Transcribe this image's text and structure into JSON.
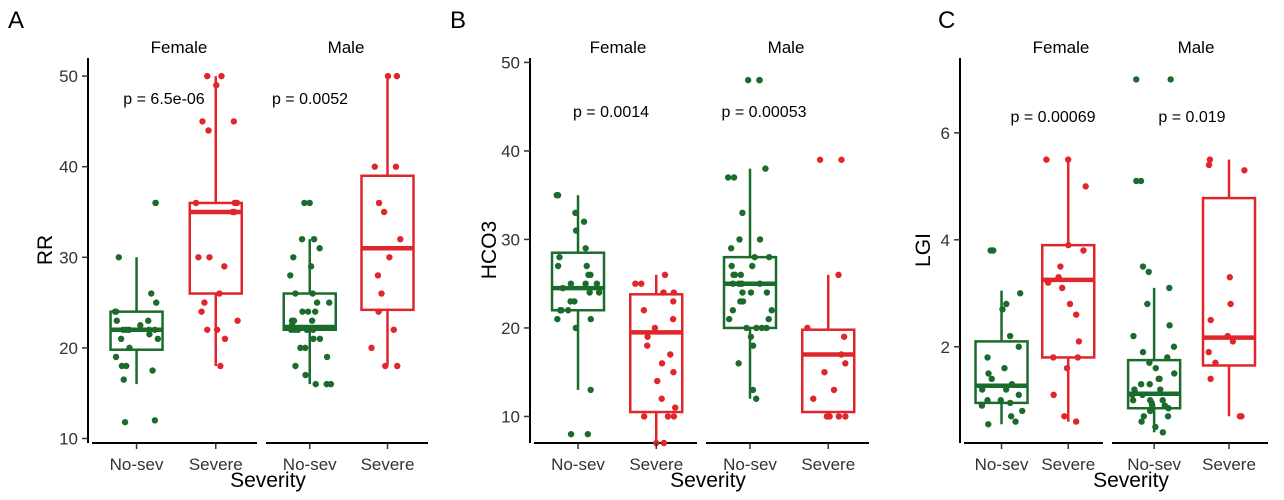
{
  "colors": {
    "no_sev": "#1a6b2c",
    "severe": "#e0252b"
  },
  "chart_data": [
    {
      "type": "box",
      "panel_letter": "A",
      "ylabel": "RR",
      "xlabel": "Severity",
      "ylim": [
        9.5,
        52
      ],
      "yticks": [
        10,
        20,
        30,
        40,
        50
      ],
      "categories": [
        "No-sev",
        "Severe"
      ],
      "facets": [
        {
          "name": "Female",
          "pvalue": "p = 6.5e-06",
          "groups": [
            {
              "category": "No-sev",
              "q1": 19.8,
              "median": 22,
              "q3": 24,
              "whisker_low": 16,
              "whisker_high": 30,
              "points": [
                30,
                26,
                25,
                24,
                24,
                23,
                23,
                22.5,
                22,
                22,
                22,
                22,
                22,
                21.5,
                21,
                21,
                20,
                19,
                18,
                18,
                17.5,
                16.5,
                12,
                11.8,
                36,
                36
              ]
            },
            {
              "category": "Severe",
              "q1": 26,
              "median": 35,
              "q3": 36,
              "whisker_low": 18,
              "whisker_high": 50,
              "points": [
                50,
                50,
                49,
                45,
                45,
                44,
                36,
                36,
                36,
                36,
                35,
                35,
                30,
                30,
                29,
                26,
                25,
                24,
                23,
                22,
                22,
                21,
                18
              ]
            }
          ]
        },
        {
          "name": "Male",
          "pvalue": "p = 0.0052",
          "groups": [
            {
              "category": "No-sev",
              "q1": 22,
              "median": 22.3,
              "q3": 26,
              "whisker_low": 16,
              "whisker_high": 32,
              "points": [
                36,
                36,
                32,
                32,
                31,
                30,
                29,
                28,
                26,
                26,
                25,
                25,
                24,
                24,
                24,
                23,
                23,
                23,
                22.5,
                22,
                22,
                22,
                22,
                22,
                22,
                21,
                21,
                20,
                20,
                19,
                18,
                17,
                16,
                16,
                16
              ]
            },
            {
              "category": "Severe",
              "q1": 24.2,
              "median": 31,
              "q3": 39,
              "whisker_low": 18,
              "whisker_high": 50,
              "points": [
                50,
                50,
                40,
                40,
                36,
                35,
                32,
                30,
                28,
                26,
                24,
                22,
                20,
                18,
                18
              ]
            }
          ]
        }
      ]
    },
    {
      "type": "box",
      "panel_letter": "B",
      "ylabel": "HCO3",
      "xlabel": "Severity",
      "ylim": [
        7,
        50.5
      ],
      "yticks": [
        10,
        20,
        30,
        40,
        50
      ],
      "categories": [
        "No-sev",
        "Severe"
      ],
      "facets": [
        {
          "name": "Female",
          "pvalue": "p = 0.0014",
          "groups": [
            {
              "category": "No-sev",
              "q1": 22,
              "median": 24.5,
              "q3": 28.5,
              "whisker_low": 13,
              "whisker_high": 35,
              "points": [
                35,
                35,
                33,
                32,
                31,
                29,
                28,
                27,
                27,
                26,
                26,
                25,
                25,
                25,
                24.5,
                24,
                24,
                23,
                23,
                22,
                22,
                22,
                21,
                21,
                20,
                13,
                8,
                8
              ]
            },
            {
              "category": "Severe",
              "q1": 10.5,
              "median": 19.5,
              "q3": 23.8,
              "whisker_low": 7,
              "whisker_high": 26,
              "points": [
                26,
                25,
                25,
                24,
                24,
                23,
                22,
                21,
                20,
                19,
                18,
                17,
                16,
                15,
                14,
                12,
                11,
                10,
                10,
                10,
                7,
                7
              ]
            }
          ]
        },
        {
          "name": "Male",
          "pvalue": "p = 0.00053",
          "groups": [
            {
              "category": "No-sev",
              "q1": 20,
              "median": 25,
              "q3": 28,
              "whisker_low": 12,
              "whisker_high": 38,
              "points": [
                48,
                48,
                48,
                38,
                37,
                37,
                33,
                30,
                30,
                29,
                28,
                28,
                27,
                27,
                26,
                26,
                26,
                25,
                25,
                25,
                25,
                24,
                24,
                24,
                23,
                23,
                22,
                22,
                21,
                21,
                20,
                20,
                20,
                20,
                19,
                18,
                16,
                13,
                12
              ]
            },
            {
              "category": "Severe",
              "q1": 10.5,
              "median": 17,
              "q3": 19.8,
              "whisker_low": 10,
              "whisker_high": 26,
              "points": [
                39,
                39,
                26,
                20,
                19,
                17,
                16,
                15,
                13,
                12,
                10,
                10,
                10,
                10
              ]
            }
          ]
        }
      ]
    },
    {
      "type": "box",
      "panel_letter": "C",
      "ylabel": "LGI",
      "xlabel": "Severity",
      "ylim": [
        0.2,
        7.4
      ],
      "yticks": [
        2,
        4,
        6
      ],
      "categories": [
        "No-sev",
        "Severe"
      ],
      "facets": [
        {
          "name": "Female",
          "pvalue": "p = 0.00069",
          "groups": [
            {
              "category": "No-sev",
              "q1": 0.95,
              "median": 1.27,
              "q3": 2.1,
              "whisker_low": 0.55,
              "whisker_high": 3.05,
              "points": [
                3.8,
                3.8,
                3.0,
                2.8,
                2.7,
                2.2,
                2.0,
                1.8,
                1.6,
                1.5,
                1.4,
                1.3,
                1.2,
                1.2,
                1.1,
                1.0,
                1.0,
                0.95,
                0.9,
                0.8,
                0.7,
                0.6,
                0.55
              ]
            },
            {
              "category": "Severe",
              "q1": 1.8,
              "median": 3.25,
              "q3": 3.9,
              "whisker_low": 0.6,
              "whisker_high": 5.5,
              "points": [
                5.5,
                5.5,
                5.0,
                3.9,
                3.8,
                3.5,
                3.3,
                3.2,
                3.1,
                2.8,
                2.6,
                2.1,
                1.8,
                1.8,
                1.6,
                1.1,
                0.7,
                0.6
              ]
            }
          ]
        },
        {
          "name": "Male",
          "pvalue": "p = 0.019",
          "groups": [
            {
              "category": "No-sev",
              "q1": 0.85,
              "median": 1.12,
              "q3": 1.75,
              "whisker_low": 0.4,
              "whisker_high": 3.1,
              "points": [
                7.0,
                7.0,
                5.1,
                5.1,
                3.5,
                3.4,
                3.1,
                2.8,
                2.4,
                2.2,
                2.0,
                1.9,
                1.8,
                1.7,
                1.6,
                1.5,
                1.4,
                1.4,
                1.3,
                1.3,
                1.2,
                1.2,
                1.15,
                1.1,
                1.1,
                1.0,
                1.0,
                1.0,
                0.95,
                0.9,
                0.9,
                0.85,
                0.8,
                0.8,
                0.7,
                0.7,
                0.6,
                0.5,
                0.4
              ]
            },
            {
              "category": "Severe",
              "q1": 1.65,
              "median": 2.17,
              "q3": 4.78,
              "whisker_low": 0.7,
              "whisker_high": 5.5,
              "points": [
                5.5,
                5.4,
                5.3,
                3.3,
                2.8,
                2.5,
                2.2,
                2.1,
                1.9,
                1.7,
                1.4,
                0.7,
                0.7
              ]
            }
          ]
        }
      ]
    }
  ]
}
